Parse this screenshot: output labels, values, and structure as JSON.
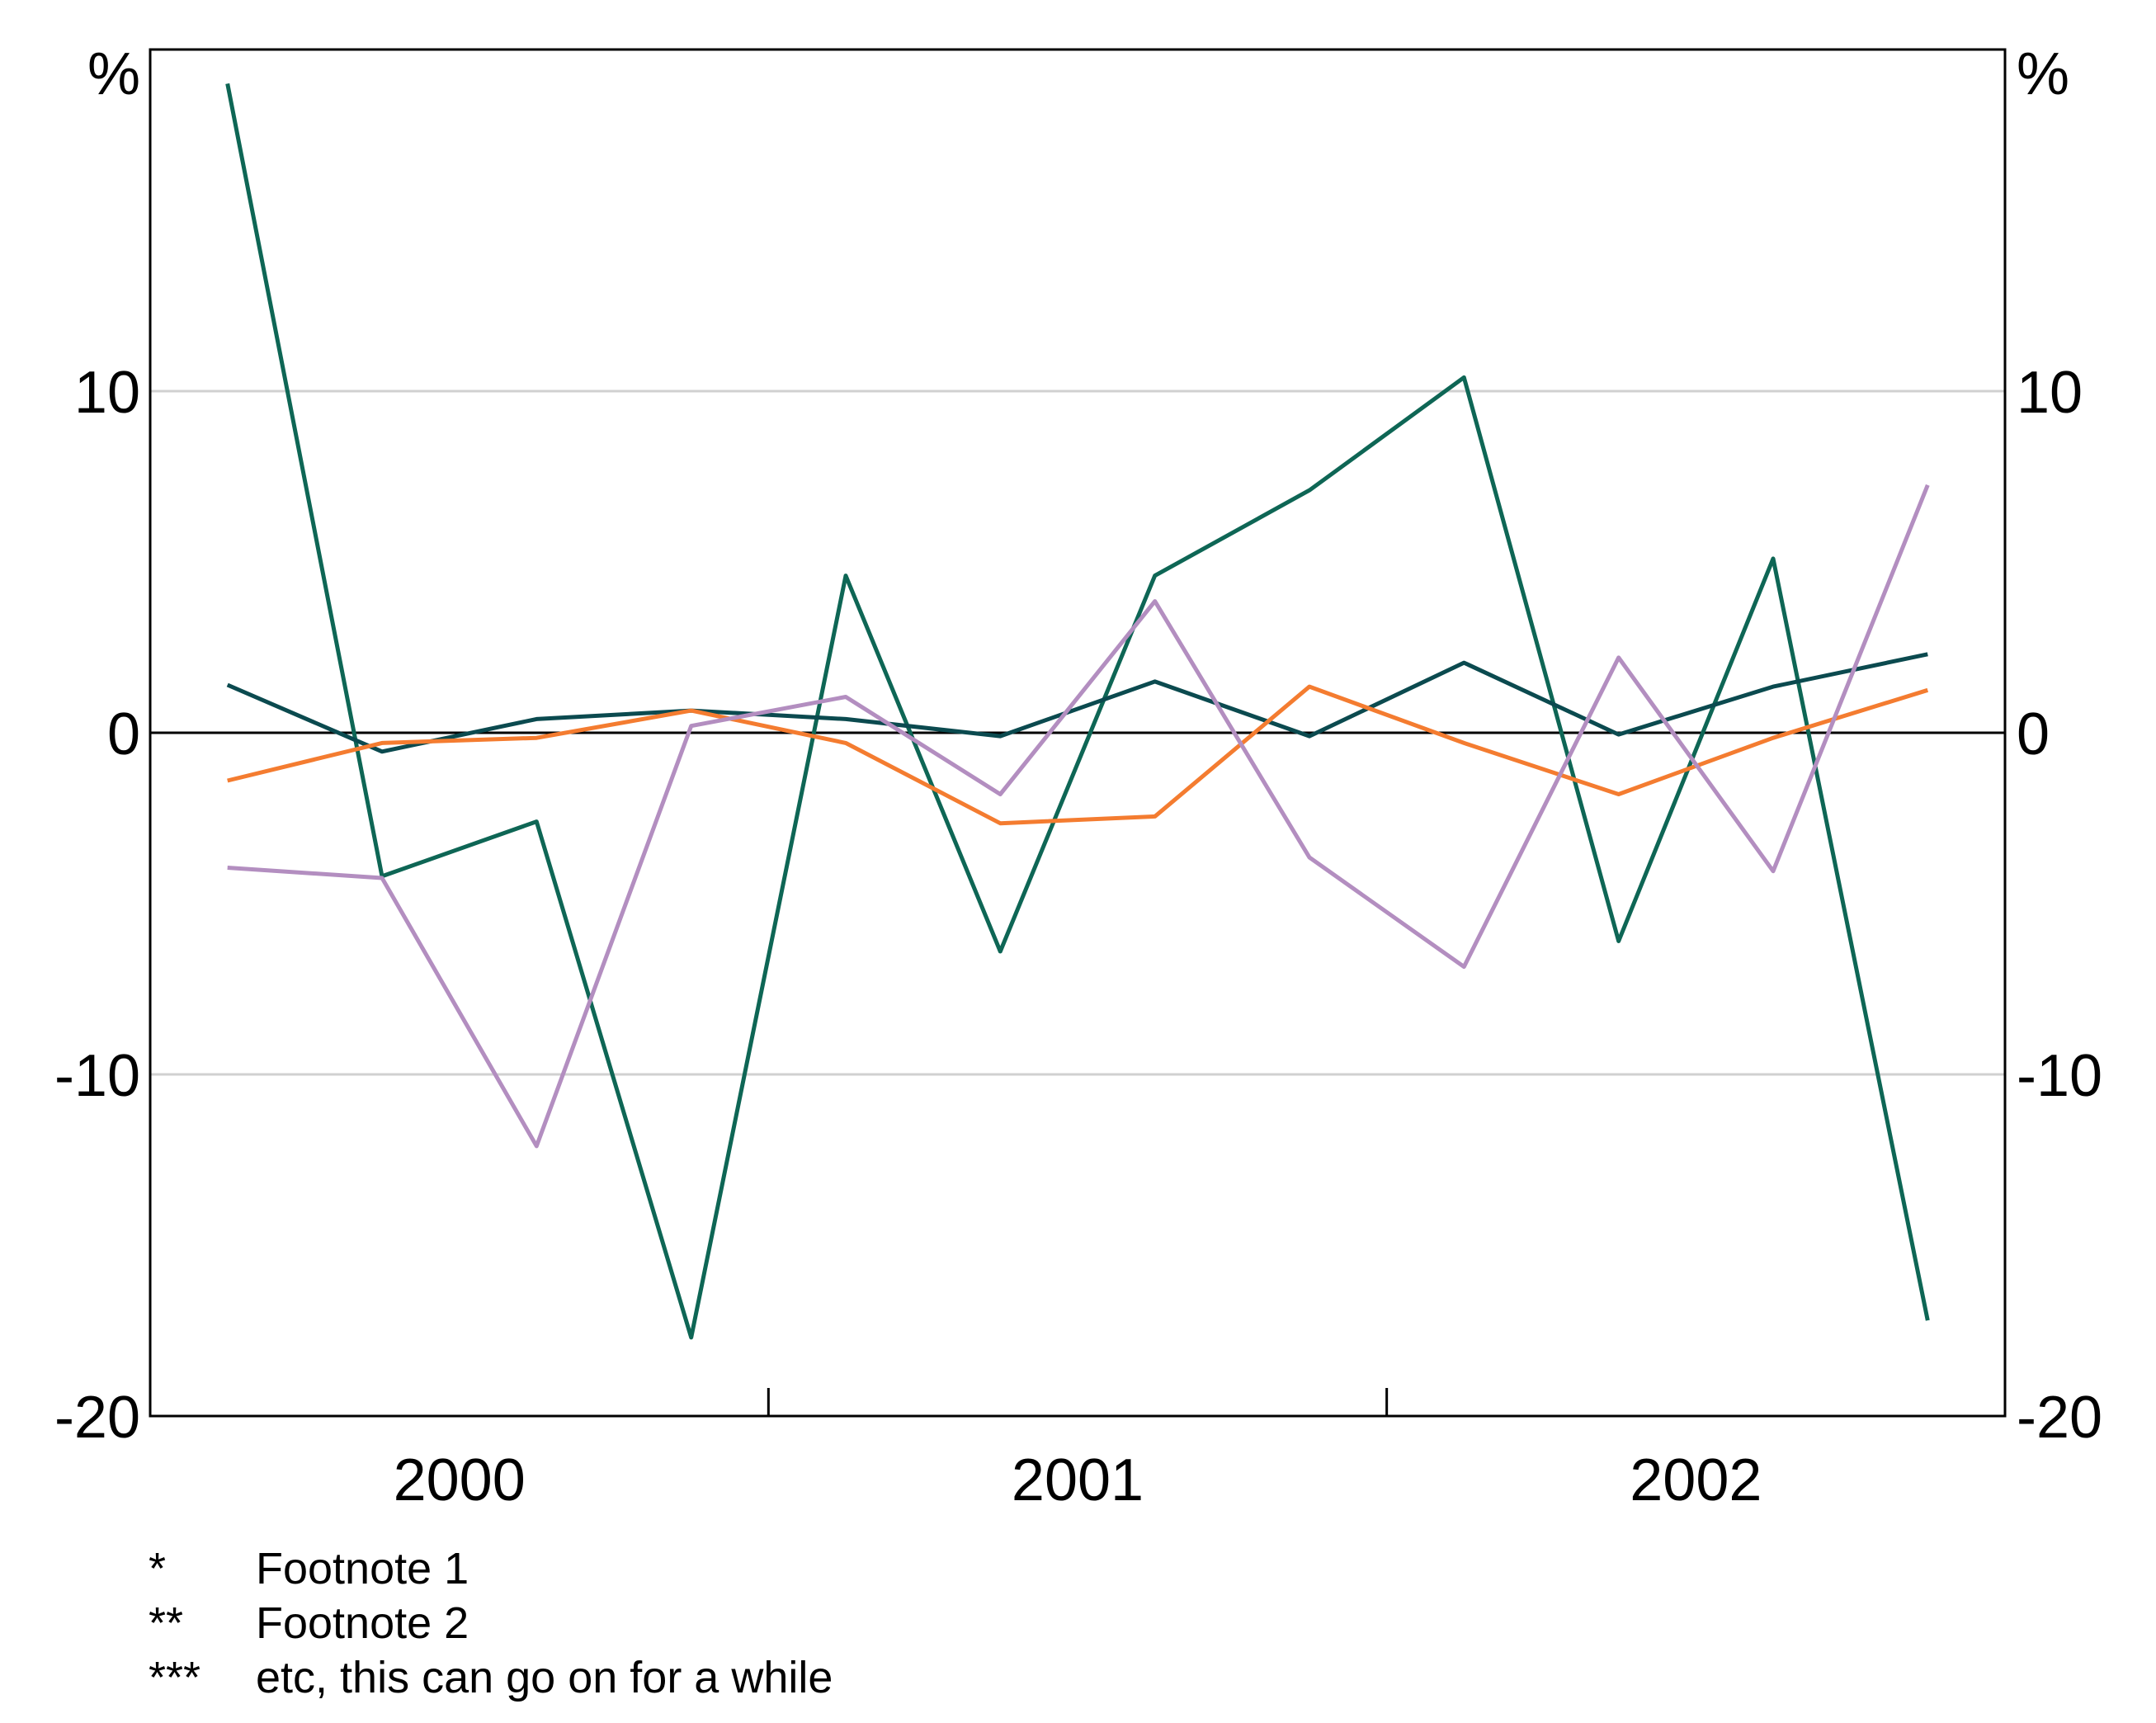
{
  "chart_data": {
    "type": "line",
    "unit_label": "%",
    "ylim": [
      -20,
      20
    ],
    "yticks": [
      -20,
      -10,
      0,
      10
    ],
    "ytick_labels": [
      "-20",
      "-10",
      "0",
      "10"
    ],
    "grid": true,
    "x": [
      1999.625,
      1999.875,
      2000.125,
      2000.375,
      2000.625,
      2000.875,
      2001.125,
      2001.375,
      2001.625,
      2001.875,
      2002.125,
      2002.375
    ],
    "xlim": [
      1999.5,
      2002.5
    ],
    "x_categories": [
      {
        "label": "2000",
        "center": 2000.0
      },
      {
        "label": "2001",
        "center": 2001.0
      },
      {
        "label": "2002",
        "center": 2002.0
      }
    ],
    "x_tick_marks": [
      2000.5,
      2001.5
    ],
    "series": [
      {
        "color": "#0e6655",
        "values": [
          19.0,
          -4.2,
          -2.6,
          -17.7,
          4.6,
          -6.4,
          4.6,
          7.1,
          10.4,
          -6.1,
          5.1,
          -17.2
        ]
      },
      {
        "color": "#0b4a4f",
        "values": [
          1.4,
          -0.55,
          0.4,
          0.65,
          0.4,
          -0.1,
          1.5,
          -0.1,
          2.05,
          -0.05,
          1.35,
          2.3
        ]
      },
      {
        "color": "#f47c30",
        "values": [
          -1.4,
          -0.3,
          -0.15,
          0.65,
          -0.3,
          -2.65,
          -2.45,
          1.35,
          -0.3,
          -1.8,
          -0.15,
          1.25
        ]
      },
      {
        "color": "#b38ec0",
        "values": [
          -3.95,
          -4.25,
          -12.1,
          0.2,
          1.05,
          -1.8,
          3.85,
          -3.65,
          -6.85,
          2.2,
          -4.05,
          7.25
        ]
      }
    ]
  },
  "footnotes": [
    {
      "marker": "*",
      "text": "Footnote 1"
    },
    {
      "marker": "**",
      "text": "Footnote 2"
    },
    {
      "marker": "***",
      "text": "etc, this can go on for a while"
    }
  ]
}
